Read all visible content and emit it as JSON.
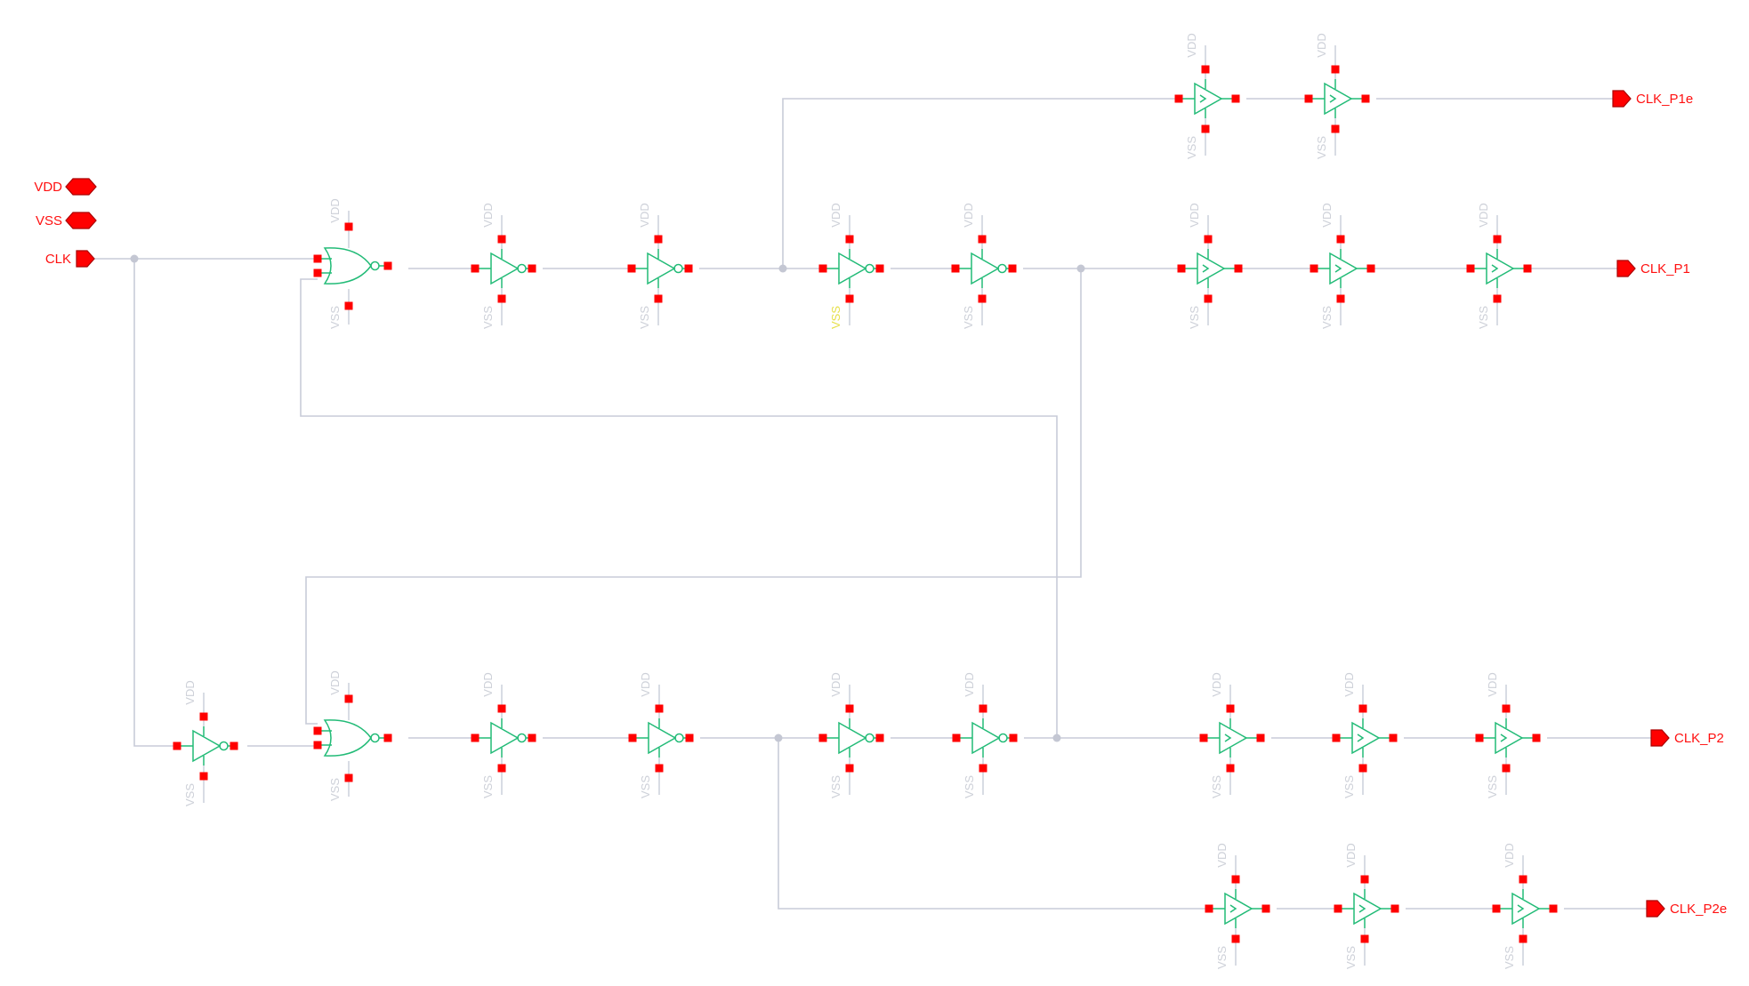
{
  "ports": {
    "vdd": "VDD",
    "vss": "VSS",
    "clk": "CLK",
    "clk_p1e": "CLK_P1e",
    "clk_p1": "CLK_P1",
    "clk_p2": "CLK_P2",
    "clk_p2e": "CLK_P2e"
  },
  "supply": {
    "vdd": "VDD",
    "vss": "VSS"
  },
  "colors": {
    "gate": "#22bb77",
    "pin": "#ff0000",
    "wire": "#c8ccd8",
    "label": "#ff1010",
    "highlight": "#e6e04a"
  }
}
